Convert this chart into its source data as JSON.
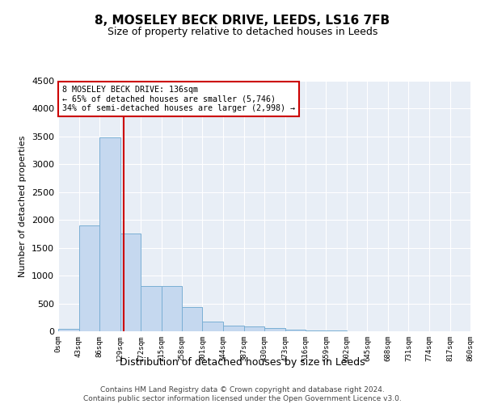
{
  "title": "8, MOSELEY BECK DRIVE, LEEDS, LS16 7FB",
  "subtitle": "Size of property relative to detached houses in Leeds",
  "xlabel": "Distribution of detached houses by size in Leeds",
  "ylabel": "Number of detached properties",
  "bar_color": "#c5d8ef",
  "bar_edge_color": "#7aafd4",
  "background_color": "#e8eef6",
  "vline_x": 136,
  "vline_color": "#cc0000",
  "bin_edges": [
    0,
    43,
    86,
    129,
    172,
    215,
    258,
    301,
    344,
    387,
    430,
    473,
    516,
    559,
    602,
    645,
    688,
    731,
    774,
    817,
    860
  ],
  "bar_heights": [
    50,
    1900,
    3480,
    1750,
    820,
    820,
    430,
    175,
    100,
    80,
    55,
    30,
    15,
    8,
    4,
    2,
    1,
    1,
    0,
    0
  ],
  "ylim": [
    0,
    4500
  ],
  "yticks": [
    0,
    500,
    1000,
    1500,
    2000,
    2500,
    3000,
    3500,
    4000,
    4500
  ],
  "annotation_title": "8 MOSELEY BECK DRIVE: 136sqm",
  "annotation_line1": "← 65% of detached houses are smaller (5,746)",
  "annotation_line2": "34% of semi-detached houses are larger (2,998) →",
  "footer_line1": "Contains HM Land Registry data © Crown copyright and database right 2024.",
  "footer_line2": "Contains public sector information licensed under the Open Government Licence v3.0.",
  "tick_labels": [
    "0sqm",
    "43sqm",
    "86sqm",
    "129sqm",
    "172sqm",
    "215sqm",
    "258sqm",
    "301sqm",
    "344sqm",
    "387sqm",
    "430sqm",
    "473sqm",
    "516sqm",
    "559sqm",
    "602sqm",
    "645sqm",
    "688sqm",
    "731sqm",
    "774sqm",
    "817sqm",
    "860sqm"
  ]
}
